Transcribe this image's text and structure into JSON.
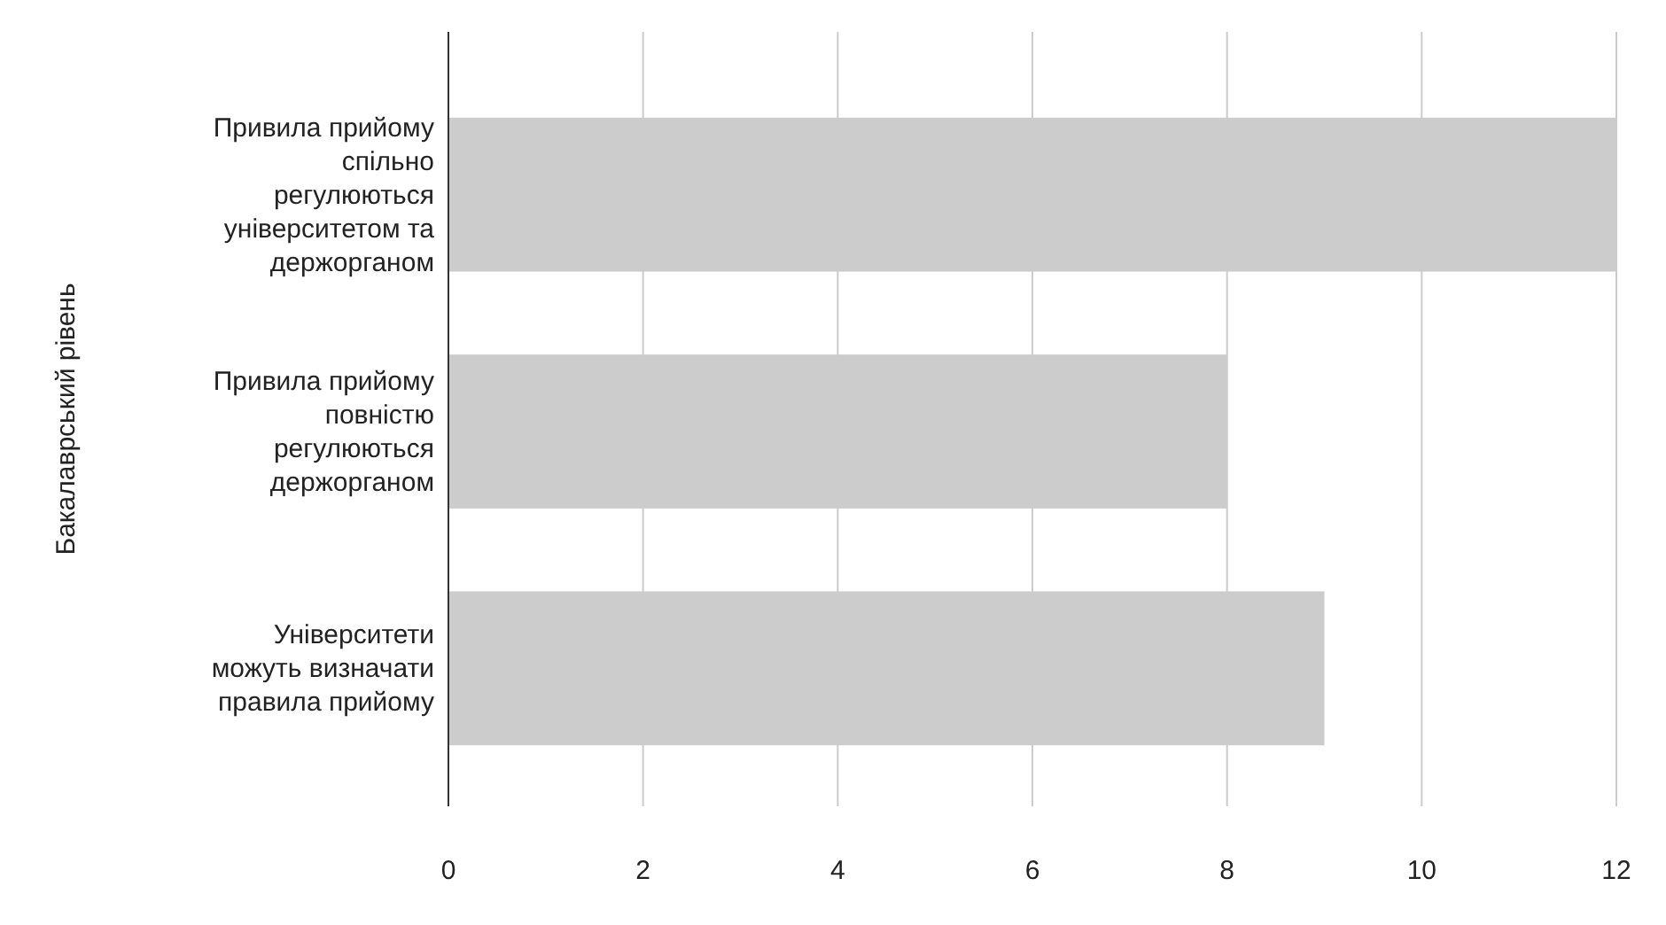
{
  "chart_data": {
    "type": "bar",
    "orientation": "horizontal",
    "ylabel": "Бакалаврський рівень",
    "categories": [
      "Привила прийому спільно регулюються університетом та держорганом",
      "Привила прийому повністю регулюються держорганом",
      "Університети можуть визначати правила прийому"
    ],
    "values": [
      12,
      8,
      9
    ],
    "color": "#cccccc",
    "xlim": [
      0,
      12
    ],
    "xticks": [
      0,
      2,
      4,
      6,
      8,
      10,
      12
    ],
    "grid": "x"
  }
}
